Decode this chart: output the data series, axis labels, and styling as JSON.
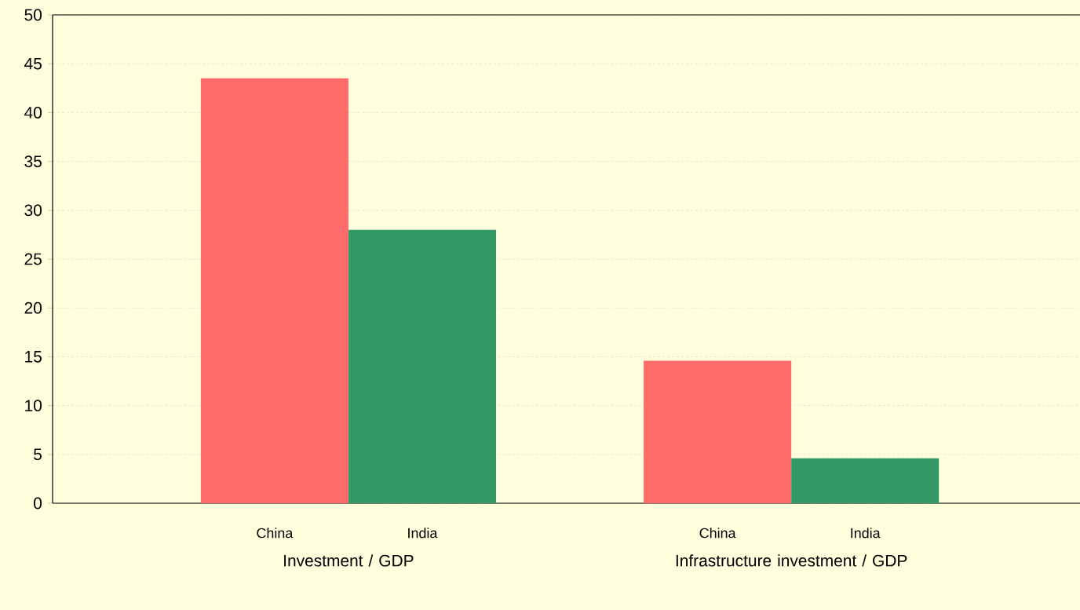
{
  "chart_data": {
    "type": "bar",
    "categories": [
      "Investment / GDP",
      "Infrastructure investment / GDP"
    ],
    "series": [
      {
        "name": "China",
        "color": "#ff6b6b",
        "values": [
          43.5,
          14.6
        ]
      },
      {
        "name": "India",
        "color": "#339966",
        "values": [
          28,
          4.6
        ]
      }
    ],
    "ylim": [
      0,
      50
    ],
    "yticks": [
      0,
      5,
      10,
      15,
      20,
      25,
      30,
      35,
      40,
      45,
      50
    ],
    "grid": "y"
  }
}
